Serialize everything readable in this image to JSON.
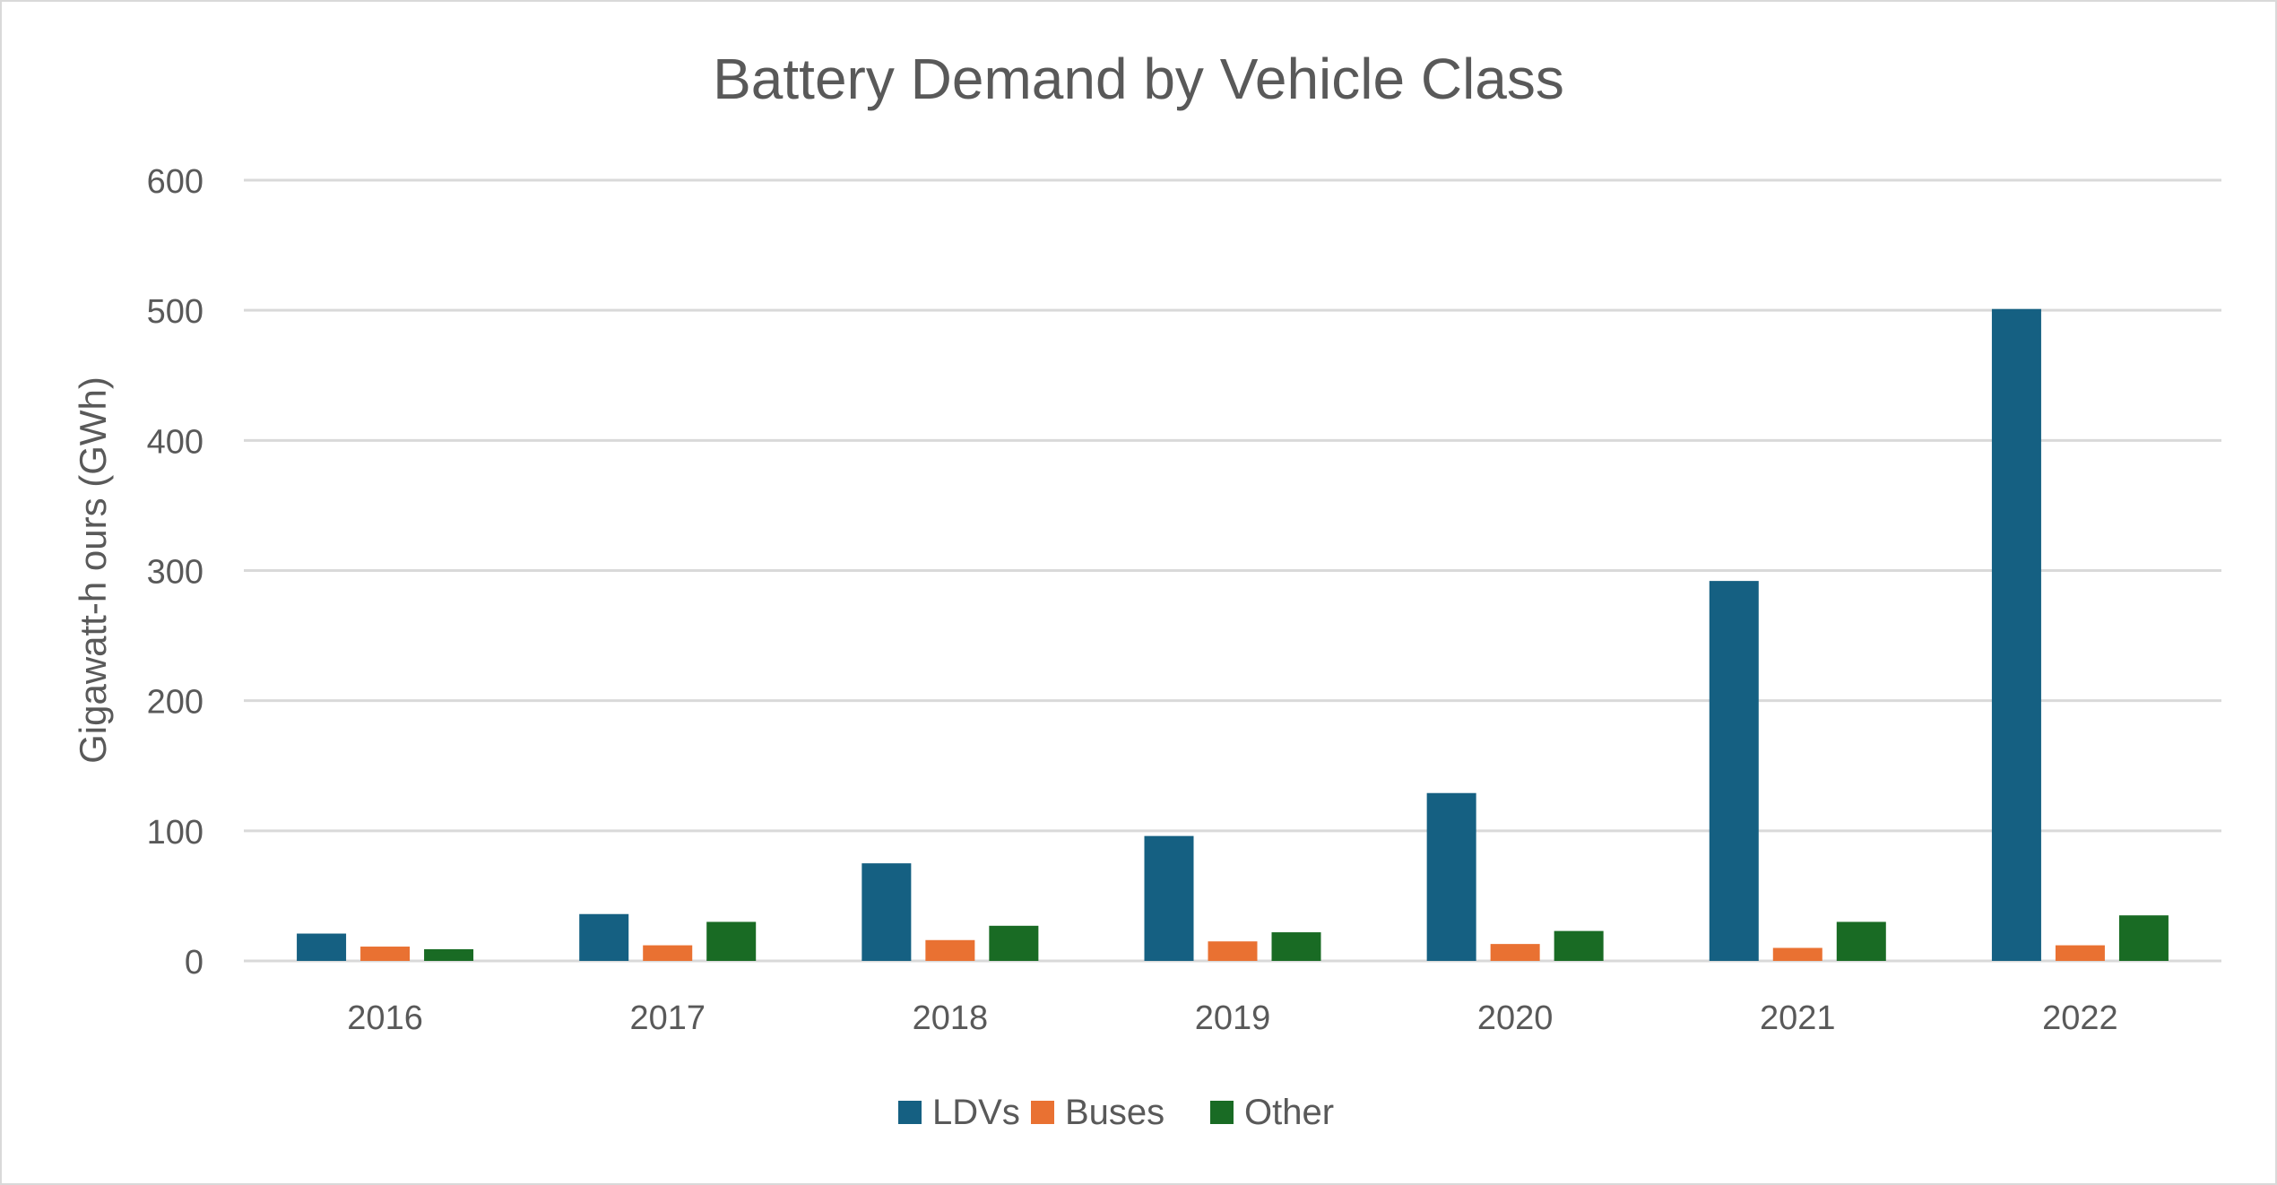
{
  "chart_data": {
    "type": "bar",
    "title": "Battery Demand by Vehicle Class",
    "xlabel": "",
    "ylabel": "Gigawatt-h ours (GWh)",
    "ylim": [
      0,
      600
    ],
    "yticks": [
      "0",
      "100",
      "200",
      "300",
      "400",
      "500",
      "600"
    ],
    "ytick_values": [
      0,
      100,
      200,
      300,
      400,
      500,
      600
    ],
    "grid": true,
    "legend": "bottom",
    "categories": [
      "2016",
      "2017",
      "2018",
      "2019",
      "2020",
      "2021",
      "2022"
    ],
    "series": [
      {
        "name": "LDVs",
        "color": "#156082",
        "values": [
          21,
          36,
          75,
          96,
          129,
          292,
          501
        ]
      },
      {
        "name": "Buses",
        "color": "#E97132",
        "values": [
          11,
          12,
          16,
          15,
          13,
          10,
          12
        ]
      },
      {
        "name": "Other",
        "color": "#196B24",
        "values": [
          9,
          30,
          27,
          22,
          23,
          30,
          35
        ]
      }
    ]
  }
}
